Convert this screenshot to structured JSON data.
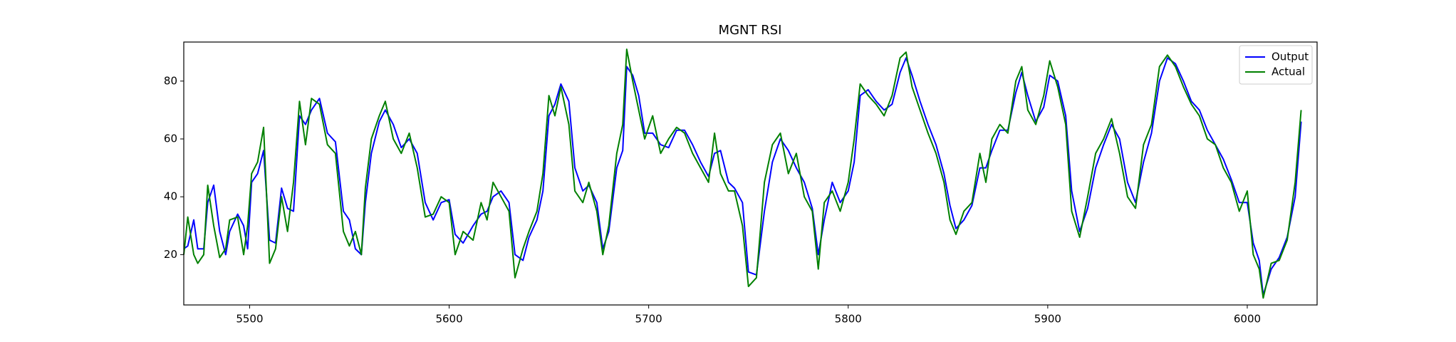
{
  "chart_data": {
    "type": "line",
    "title": "MGNT RSI",
    "x": [
      5467,
      5469,
      5472,
      5474,
      5477,
      5479,
      5482,
      5485,
      5488,
      5490,
      5494,
      5497,
      5499,
      5501,
      5504,
      5507,
      5510,
      5513,
      5516,
      5519,
      5522,
      5525,
      5528,
      5531,
      5535,
      5539,
      5543,
      5547,
      5550,
      5553,
      5556,
      5558,
      5561,
      5565,
      5568,
      5572,
      5576,
      5580,
      5584,
      5588,
      5592,
      5596,
      5600,
      5603,
      5607,
      5612,
      5616,
      5619,
      5622,
      5626,
      5630,
      5633,
      5637,
      5640,
      5644,
      5647,
      5650,
      5653,
      5656,
      5660,
      5663,
      5667,
      5670,
      5674,
      5677,
      5680,
      5684,
      5687,
      5689,
      5692,
      5695,
      5698,
      5702,
      5706,
      5710,
      5714,
      5718,
      5722,
      5726,
      5730,
      5733,
      5736,
      5740,
      5743,
      5747,
      5750,
      5754,
      5758,
      5762,
      5766,
      5770,
      5774,
      5778,
      5782,
      5785,
      5788,
      5792,
      5796,
      5800,
      5803,
      5806,
      5810,
      5814,
      5818,
      5822,
      5826,
      5829,
      5832,
      5836,
      5840,
      5844,
      5848,
      5851,
      5854,
      5858,
      5862,
      5866,
      5869,
      5872,
      5876,
      5880,
      5884,
      5887,
      5890,
      5894,
      5898,
      5901,
      5905,
      5909,
      5912,
      5916,
      5920,
      5924,
      5928,
      5932,
      5936,
      5940,
      5944,
      5948,
      5952,
      5956,
      5960,
      5964,
      5968,
      5972,
      5976,
      5980,
      5984,
      5988,
      5992,
      5996,
      6000,
      6003,
      6006,
      6008,
      6012,
      6016,
      6020,
      6024,
      6027
    ],
    "series": [
      {
        "name": "Output",
        "color": "#0000ff",
        "values": [
          22,
          23,
          32,
          22,
          22,
          38,
          44,
          28,
          20,
          28,
          34,
          30,
          22,
          45,
          48,
          56,
          25,
          24,
          43,
          36,
          35,
          68,
          65,
          70,
          74,
          62,
          59,
          35,
          32,
          22,
          20,
          38,
          55,
          66,
          70,
          65,
          57,
          60,
          55,
          38,
          32,
          38,
          39,
          27,
          24,
          30,
          34,
          35,
          40,
          42,
          38,
          20,
          18,
          26,
          32,
          42,
          68,
          72,
          79,
          73,
          50,
          42,
          44,
          38,
          22,
          28,
          50,
          56,
          85,
          82,
          75,
          62,
          62,
          58,
          57,
          63,
          63,
          58,
          52,
          47,
          55,
          56,
          45,
          43,
          38,
          14,
          13,
          35,
          52,
          60,
          56,
          50,
          45,
          36,
          20,
          32,
          45,
          38,
          42,
          52,
          75,
          77,
          73,
          70,
          72,
          83,
          88,
          82,
          73,
          65,
          58,
          48,
          37,
          29,
          32,
          37,
          50,
          50,
          56,
          63,
          63,
          76,
          83,
          75,
          66,
          71,
          82,
          80,
          68,
          42,
          28,
          36,
          50,
          58,
          65,
          60,
          45,
          38,
          52,
          62,
          80,
          88,
          86,
          80,
          73,
          70,
          63,
          58,
          53,
          46,
          38,
          38,
          24,
          18,
          6,
          15,
          19,
          26,
          40,
          66
        ]
      },
      {
        "name": "Actual",
        "color": "#008000",
        "values": [
          20,
          33,
          20,
          17,
          20,
          44,
          30,
          19,
          22,
          32,
          33,
          20,
          30,
          48,
          52,
          64,
          17,
          22,
          40,
          28,
          45,
          73,
          58,
          74,
          72,
          58,
          55,
          28,
          23,
          28,
          20,
          43,
          60,
          68,
          73,
          60,
          55,
          62,
          50,
          33,
          34,
          40,
          38,
          20,
          28,
          25,
          38,
          32,
          45,
          40,
          35,
          12,
          22,
          28,
          35,
          48,
          75,
          68,
          78,
          65,
          42,
          38,
          45,
          35,
          20,
          30,
          55,
          65,
          91,
          80,
          70,
          60,
          68,
          55,
          60,
          64,
          62,
          55,
          50,
          45,
          62,
          48,
          42,
          42,
          30,
          9,
          12,
          45,
          58,
          62,
          48,
          55,
          40,
          35,
          15,
          38,
          42,
          35,
          45,
          60,
          79,
          75,
          72,
          68,
          75,
          88,
          90,
          78,
          70,
          62,
          55,
          45,
          32,
          27,
          35,
          38,
          55,
          45,
          60,
          65,
          62,
          80,
          85,
          70,
          65,
          75,
          87,
          78,
          65,
          35,
          26,
          40,
          55,
          60,
          67,
          55,
          40,
          36,
          58,
          65,
          85,
          89,
          85,
          78,
          72,
          68,
          60,
          58,
          50,
          45,
          35,
          42,
          20,
          15,
          5,
          17,
          18,
          25,
          45,
          70
        ]
      }
    ],
    "xlim": [
      5467,
      6035
    ],
    "ylim": [
      2.6,
      93.5
    ],
    "xticks": [
      5500,
      5600,
      5700,
      5800,
      5900,
      6000
    ],
    "yticks": [
      20,
      40,
      60,
      80
    ],
    "legend": "upper right"
  }
}
